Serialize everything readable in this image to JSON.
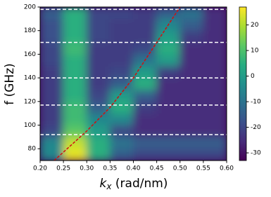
{
  "chart_data": {
    "type": "heatmap",
    "xlabel": {
      "base": "k",
      "sub": "x",
      "rest": " (rad/nm)"
    },
    "ylabel": "f (GHz)",
    "xlim": [
      0.2,
      0.6
    ],
    "xticks": [
      {
        "value": 0.2,
        "label": "0.20"
      },
      {
        "value": 0.25,
        "label": "0.25"
      },
      {
        "value": 0.3,
        "label": "0.30"
      },
      {
        "value": 0.35,
        "label": "0.35"
      },
      {
        "value": 0.4,
        "label": "0.40"
      },
      {
        "value": 0.45,
        "label": "0.45"
      },
      {
        "value": 0.5,
        "label": "0.50"
      },
      {
        "value": 0.55,
        "label": "0.55"
      },
      {
        "value": 0.6,
        "label": "0.60"
      }
    ],
    "ylim": [
      70,
      200
    ],
    "yticks": [
      80,
      100,
      120,
      140,
      160,
      180,
      200
    ],
    "x_edges": [
      0.2,
      0.25,
      0.3,
      0.35,
      0.4,
      0.45,
      0.5,
      0.55,
      0.6
    ],
    "y_edges": [
      70,
      80,
      90,
      100,
      110,
      120,
      130,
      140,
      150,
      160,
      170,
      180,
      190,
      200
    ],
    "z": [
      [
        -5,
        25,
        5,
        -15,
        -20,
        -20,
        -20,
        -20
      ],
      [
        -5,
        22,
        5,
        -10,
        -15,
        -15,
        -15,
        -15
      ],
      [
        -20,
        12,
        0,
        -20,
        -25,
        -25,
        -25,
        -25
      ],
      [
        -22,
        8,
        -5,
        -5,
        -25,
        -25,
        -25,
        -25
      ],
      [
        -22,
        8,
        -15,
        5,
        -22,
        -25,
        -25,
        -25
      ],
      [
        -22,
        5,
        -20,
        0,
        -15,
        -25,
        -25,
        -25
      ],
      [
        -22,
        5,
        -22,
        -15,
        5,
        -25,
        -25,
        -25
      ],
      [
        -22,
        5,
        -22,
        -20,
        0,
        -22,
        -25,
        -25
      ],
      [
        -20,
        5,
        -22,
        -22,
        -10,
        0,
        -25,
        -25
      ],
      [
        -20,
        8,
        -22,
        -22,
        -20,
        5,
        -25,
        -25
      ],
      [
        -18,
        5,
        -20,
        -22,
        -22,
        0,
        -22,
        -25
      ],
      [
        -18,
        5,
        -20,
        -22,
        -22,
        -5,
        -15,
        -25
      ],
      [
        -15,
        5,
        -20,
        -20,
        -22,
        -15,
        -10,
        -25
      ]
    ],
    "zlim": [
      -33,
      27
    ],
    "zticks": [
      20,
      10,
      0,
      -10,
      -20,
      -30
    ],
    "colormap": [
      "#440154",
      "#472c7a",
      "#3b518b",
      "#2c718e",
      "#21908d",
      "#27ad81",
      "#5cc863",
      "#aadc32",
      "#fde725"
    ],
    "hlines": {
      "color": "#ffffff",
      "values": [
        92,
        117,
        140,
        170,
        198
      ]
    },
    "curve": {
      "color": "#d01010",
      "x": [
        0.23,
        0.3,
        0.35,
        0.4,
        0.45,
        0.5
      ],
      "y": [
        70,
        95,
        115,
        140,
        170,
        200
      ]
    }
  }
}
